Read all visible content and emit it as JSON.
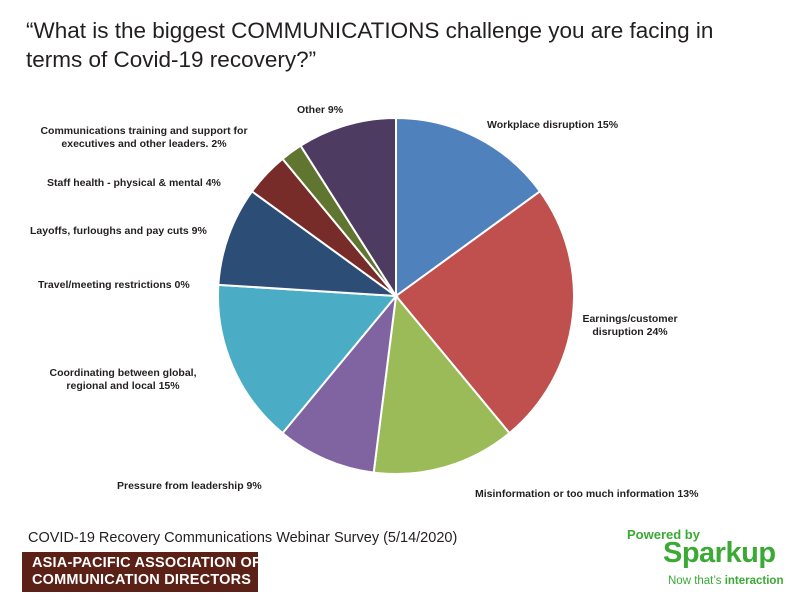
{
  "title": "“What is the biggest COMMUNICATIONS challenge you are facing in terms of Covid-19 recovery?”",
  "chart_data": {
    "type": "pie",
    "start_angle_deg": 0,
    "direction": "clockwise",
    "slices": [
      {
        "label": "Workplace disruption 15%",
        "value": 15,
        "color": "#4f81bd"
      },
      {
        "label": "Earnings/customer disruption 24%",
        "lines": [
          "Earnings/customer",
          "disruption 24%"
        ],
        "value": 24,
        "color": "#c0504d"
      },
      {
        "label": "Misinformation or too much information 13%",
        "value": 13,
        "color": "#9bbb59"
      },
      {
        "label": "Pressure from leadership 9%",
        "value": 9,
        "color": "#8064a2"
      },
      {
        "label": "Coordinating between global, regional and local 15%",
        "lines": [
          "Coordinating between global,",
          "regional and local 15%"
        ],
        "value": 15,
        "color": "#4bacc6"
      },
      {
        "label": "Travel/meeting restrictions 0%",
        "value": 0,
        "color": "#f79646"
      },
      {
        "label": "Layoffs, furloughs and pay cuts 9%",
        "value": 9,
        "color": "#2c4d75"
      },
      {
        "label": "Staff health - physical & mental 4%",
        "value": 4,
        "color": "#772c2a"
      },
      {
        "label": "Communications training and support for executives and other leaders. 2%",
        "lines": [
          "Communications training and support for",
          "executives and other leaders. 2%"
        ],
        "value": 2,
        "color": "#5f7530"
      },
      {
        "label": "Other 9%",
        "value": 9,
        "color": "#4d3b62"
      }
    ]
  },
  "footer": {
    "source": "COVID-19 Recovery Communications Webinar Survey (5/14/2020)",
    "org_line1": "ASIA-PACIFIC ASSOCIATION OF",
    "org_line2": "COMMUNICATION DIRECTORS",
    "powered_by": "Powered by",
    "brand": "Sparkup",
    "tagline_prefix": "Now that’s ",
    "tagline_bold": "interaction"
  }
}
